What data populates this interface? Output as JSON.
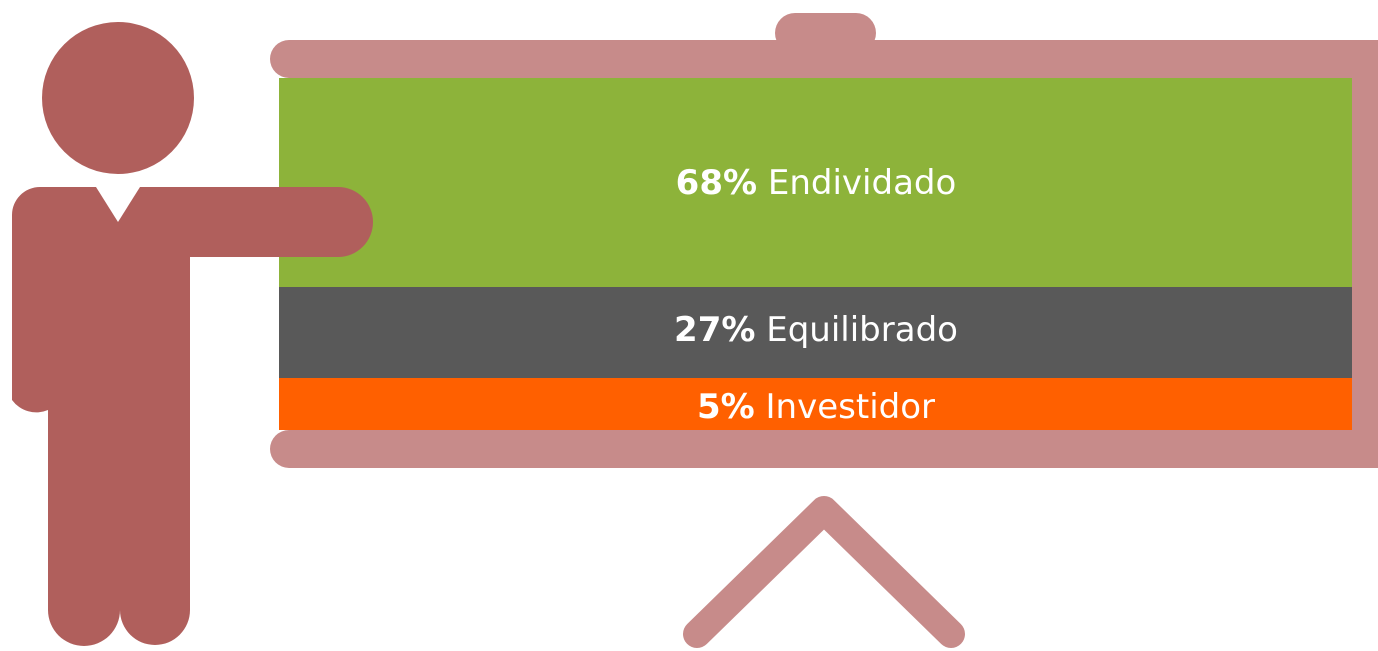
{
  "segments": [
    {
      "percent": "68%",
      "label": "Endividado",
      "color": "#8db33a"
    },
    {
      "percent": "27%",
      "label": "Equilibrado",
      "color": "#595959"
    },
    {
      "percent": "5%",
      "label": "Investidor",
      "color": "#ff6000"
    }
  ]
}
